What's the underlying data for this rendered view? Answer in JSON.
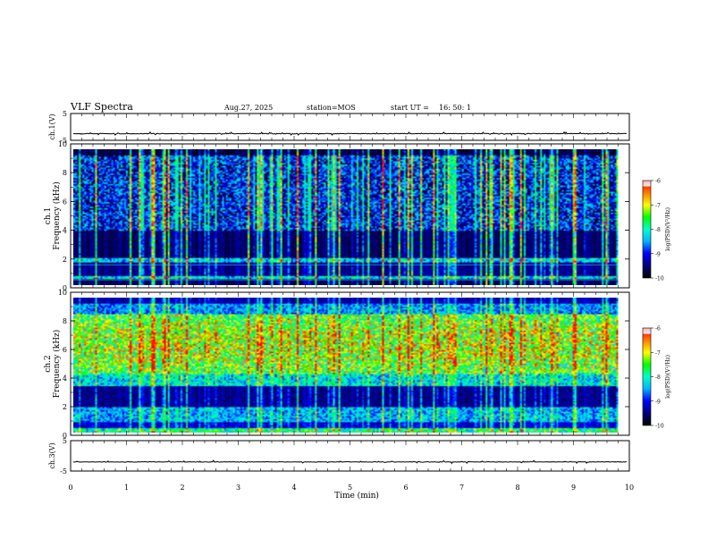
{
  "header": {
    "title": "VLF Spectra",
    "date": "Aug.27, 2025",
    "station": "station=MOS",
    "start_label": "start  UT  =",
    "start_time": "16: 50: 1"
  },
  "chart_data": [
    {
      "id": "ch1-waveform",
      "type": "line",
      "ylabel": "ch.1(V)",
      "ylim": [
        -5,
        5
      ],
      "yticks": [
        5,
        -5
      ],
      "xlim": [
        0,
        10
      ],
      "baseline": -2.5,
      "description": "time-domain amplitude trace"
    },
    {
      "id": "ch1-spectrogram",
      "type": "heatmap",
      "ylabel_line1": "ch.1",
      "ylabel_line2": "Frequency (kHz)",
      "ylim": [
        0,
        10
      ],
      "yticks": [
        0,
        2,
        4,
        6,
        8,
        10
      ],
      "xlim": [
        0,
        9.8
      ],
      "colorbar": {
        "label": "log(PSD)(V²/Hz)",
        "range": [
          -10,
          -6
        ],
        "ticks": [
          -6,
          -7,
          -8,
          -9,
          -10
        ]
      }
    },
    {
      "id": "ch2-spectrogram",
      "type": "heatmap",
      "ylabel_line1": "ch.2",
      "ylabel_line2": "Frequency (kHz)",
      "ylim": [
        0,
        10
      ],
      "yticks": [
        0,
        2,
        4,
        6,
        8,
        10
      ],
      "xlim": [
        0,
        9.8
      ],
      "colorbar": {
        "label": "log(PSD)(V²/Hz)",
        "range": [
          -10,
          -6
        ],
        "ticks": [
          -6,
          -7,
          -8,
          -9,
          -10
        ]
      }
    },
    {
      "id": "ch3-waveform",
      "type": "line",
      "ylabel": "ch.3(V)",
      "ylim": [
        -5,
        5
      ],
      "yticks": [
        5,
        -5
      ],
      "xlim": [
        0,
        10
      ],
      "baseline": -2.0,
      "description": "time-domain amplitude trace"
    }
  ],
  "x_axis": {
    "label": "Time (min)",
    "range": [
      0,
      10
    ],
    "ticks": [
      0,
      1,
      2,
      3,
      4,
      5,
      6,
      7,
      8,
      9,
      10
    ]
  },
  "colors": {
    "background": "#ffffff",
    "axis": "#000000",
    "cmap": [
      "#000000",
      "#000080",
      "#0000ff",
      "#00b4ff",
      "#00ffc8",
      "#00ff00",
      "#ffff00",
      "#ff8000",
      "#ff0000",
      "#ffffff"
    ]
  }
}
